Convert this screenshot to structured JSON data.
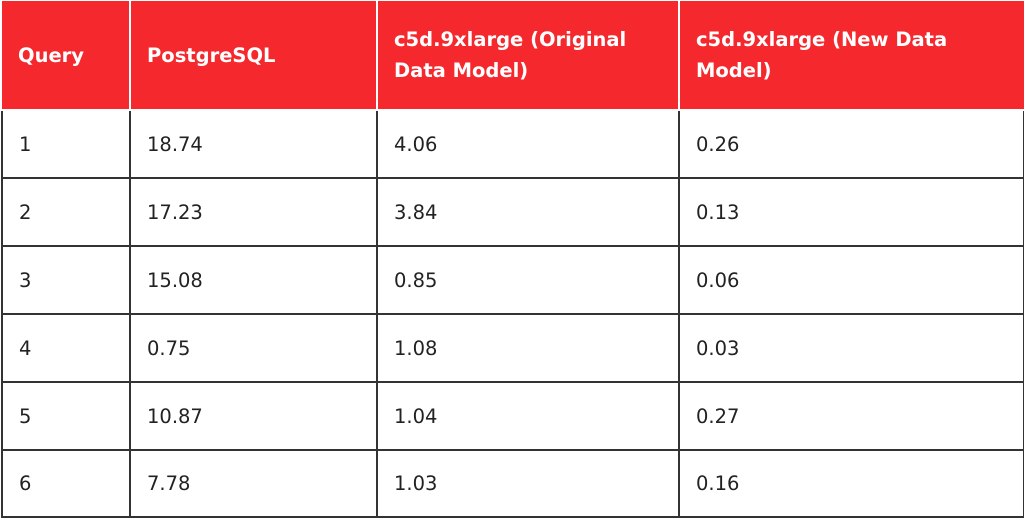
{
  "table": {
    "headers": [
      "Query",
      "PostgreSQL",
      "c5d.9xlarge (Original Data Model)",
      "c5d.9xlarge (New Data Model)"
    ],
    "rows": [
      [
        "1",
        "18.74",
        "4.06",
        "0.26"
      ],
      [
        "2",
        "17.23",
        "3.84",
        "0.13"
      ],
      [
        "3",
        "15.08",
        "0.85",
        "0.06"
      ],
      [
        "4",
        "0.75",
        "1.08",
        "0.03"
      ],
      [
        "5",
        "10.87",
        "1.04",
        "0.27"
      ],
      [
        "6",
        "7.78",
        "1.03",
        "0.16"
      ]
    ]
  },
  "colors": {
    "header_background": "#f5282d",
    "header_text": "#ffffff",
    "body_text": "#222222",
    "grid_line": "#333333"
  }
}
